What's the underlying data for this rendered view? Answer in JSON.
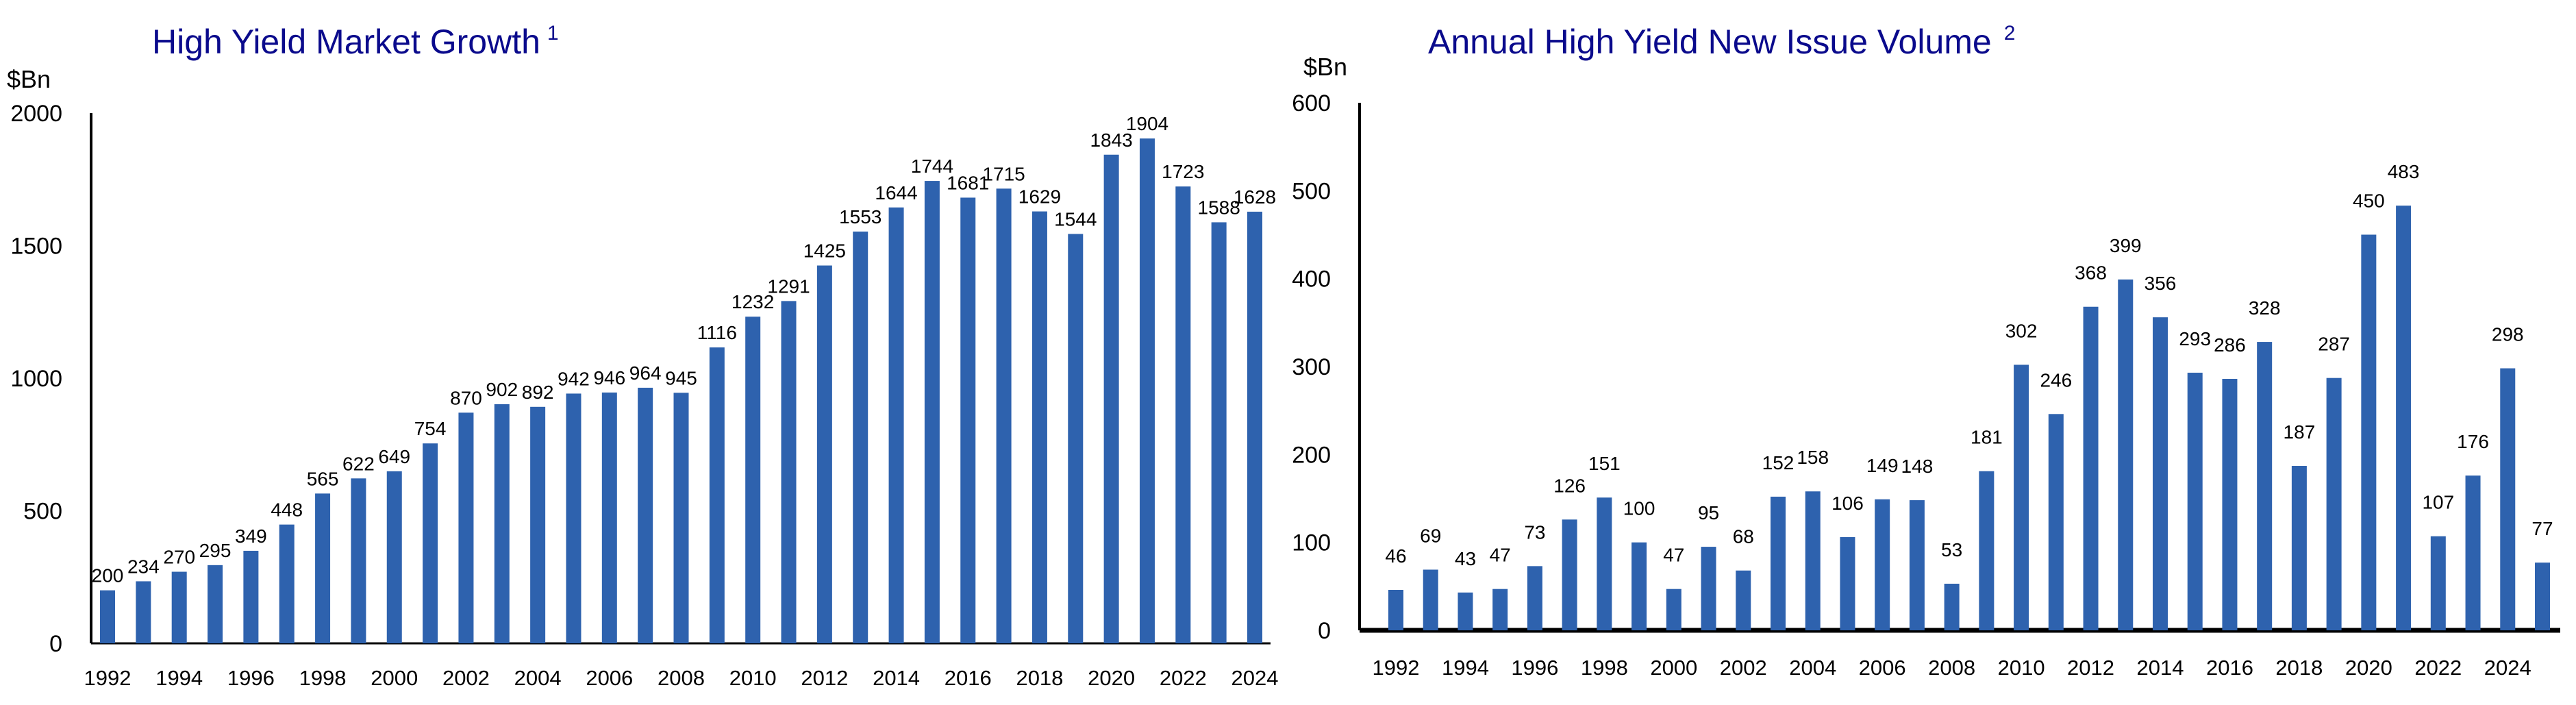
{
  "colors": {
    "bar": "#2e62ae",
    "title": "#0a0a8c",
    "axis": "#000000"
  },
  "chart_data": [
    {
      "type": "bar",
      "title": "High Yield Market Growth",
      "title_superscript": "1",
      "ylabel": "$Bn",
      "ylim": [
        0,
        2000
      ],
      "yticks": [
        "0",
        "500",
        "1000",
        "1500",
        "2000"
      ],
      "ytick_values": [
        0,
        500,
        1000,
        1500,
        2000
      ],
      "grid": false,
      "categories": [
        "1992",
        "1993",
        "1994",
        "1995",
        "1996",
        "1997",
        "1998",
        "1999",
        "2000",
        "2001",
        "2002",
        "2003",
        "2004",
        "2005",
        "2006",
        "2007",
        "2008",
        "2009",
        "2010",
        "2011",
        "2012",
        "2013",
        "2014",
        "2015",
        "2016",
        "2017",
        "2018",
        "2019",
        "2020",
        "2021",
        "2022",
        "2023",
        "2024"
      ],
      "xtick_labels": [
        "1992",
        "1994",
        "1996",
        "1998",
        "2000",
        "2002",
        "2004",
        "2006",
        "2008",
        "2010",
        "2012",
        "2014",
        "2016",
        "2018",
        "2020",
        "2022",
        "2024"
      ],
      "values": [
        200,
        234,
        270,
        295,
        349,
        448,
        565,
        622,
        649,
        754,
        870,
        902,
        892,
        942,
        946,
        964,
        945,
        1116,
        1232,
        1291,
        1425,
        1553,
        1644,
        1744,
        1681,
        1715,
        1629,
        1544,
        1843,
        1904,
        1723,
        1588,
        1628
      ]
    },
    {
      "type": "bar",
      "title": "Annual High Yield New Issue Volume",
      "title_superscript": "2",
      "ylabel": "$Bn",
      "ylim": [
        0,
        600
      ],
      "yticks": [
        "0",
        "100",
        "200",
        "300",
        "400",
        "500",
        "600"
      ],
      "ytick_values": [
        0,
        100,
        200,
        300,
        400,
        500,
        600
      ],
      "grid": false,
      "categories": [
        "1992",
        "1993",
        "1994",
        "1995",
        "1996",
        "1997",
        "1998",
        "1999",
        "2000",
        "2001",
        "2002",
        "2003",
        "2004",
        "2005",
        "2006",
        "2007",
        "2008",
        "2009",
        "2010",
        "2011",
        "2012",
        "2013",
        "2014",
        "2015",
        "2016",
        "2017",
        "2018",
        "2019",
        "2020",
        "2021",
        "2022",
        "2023",
        "2024",
        "2025"
      ],
      "xtick_labels": [
        "1992",
        "1994",
        "1996",
        "1998",
        "2000",
        "2002",
        "2004",
        "2006",
        "2008",
        "2010",
        "2012",
        "2014",
        "2016",
        "2018",
        "2020",
        "2022",
        "2024"
      ],
      "values": [
        46,
        69,
        43,
        47,
        73,
        126,
        151,
        100,
        47,
        95,
        68,
        152,
        158,
        106,
        149,
        148,
        53,
        181,
        302,
        246,
        368,
        399,
        356,
        293,
        286,
        328,
        187,
        287,
        450,
        483,
        107,
        176,
        298,
        77
      ]
    }
  ]
}
